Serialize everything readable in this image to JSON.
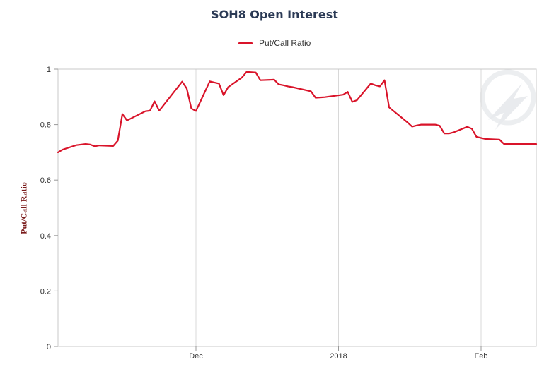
{
  "chart_data": {
    "type": "line",
    "title": "SOH8 Open Interest",
    "ylabel": "Put/Call Ratio",
    "xlabel": "",
    "ylim": [
      0,
      1
    ],
    "yticks": [
      "0",
      "0.2",
      "0.4",
      "0.6",
      "0.8",
      "1"
    ],
    "xticks": [
      "Dec",
      "2018",
      "Feb"
    ],
    "legend": "top-center",
    "grid": "vertical",
    "series": [
      {
        "name": "Put/Call Ratio",
        "color": "#d9142a",
        "x": [
          "2017-11-01",
          "2017-11-02",
          "2017-11-05",
          "2017-11-07",
          "2017-11-08",
          "2017-11-09",
          "2017-11-10",
          "2017-11-13",
          "2017-11-14",
          "2017-11-15",
          "2017-11-16",
          "2017-11-20",
          "2017-11-21",
          "2017-11-22",
          "2017-11-23",
          "2017-11-27",
          "2017-11-28",
          "2017-11-29",
          "2017-11-30",
          "2017-12-01",
          "2017-12-04",
          "2017-12-05",
          "2017-12-06",
          "2017-12-07",
          "2017-12-08",
          "2017-12-11",
          "2017-12-12",
          "2017-12-14",
          "2017-12-15",
          "2017-12-18",
          "2017-12-19",
          "2017-12-20",
          "2017-12-21",
          "2017-12-22",
          "2017-12-26",
          "2017-12-27",
          "2017-12-28",
          "2017-12-29",
          "2018-01-02",
          "2018-01-03",
          "2018-01-04",
          "2018-01-05",
          "2018-01-08",
          "2018-01-09",
          "2018-01-10",
          "2018-01-11",
          "2018-01-12",
          "2018-01-16",
          "2018-01-17",
          "2018-01-18",
          "2018-01-19",
          "2018-01-22",
          "2018-01-23",
          "2018-01-24",
          "2018-01-25",
          "2018-01-26",
          "2018-01-29",
          "2018-01-30",
          "2018-01-31",
          "2018-02-01",
          "2018-02-02",
          "2018-02-05",
          "2018-02-06",
          "2018-02-07",
          "2018-02-08",
          "2018-02-09",
          "2018-02-12",
          "2018-02-13"
        ],
        "values": [
          0.7,
          0.71,
          0.726,
          0.73,
          0.728,
          0.722,
          0.725,
          0.723,
          0.742,
          0.838,
          0.815,
          0.848,
          0.85,
          0.884,
          0.85,
          0.934,
          0.955,
          0.93,
          0.858,
          0.849,
          0.956,
          0.952,
          0.948,
          0.906,
          0.935,
          0.97,
          0.99,
          0.988,
          0.96,
          0.962,
          0.945,
          0.942,
          0.938,
          0.935,
          0.92,
          0.897,
          0.898,
          0.899,
          0.908,
          0.918,
          0.882,
          0.888,
          0.948,
          0.942,
          0.938,
          0.96,
          0.862,
          0.808,
          0.793,
          0.797,
          0.8,
          0.8,
          0.796,
          0.768,
          0.768,
          0.772,
          0.792,
          0.785,
          0.756,
          0.752,
          0.748,
          0.746,
          0.73,
          0.73,
          0.73,
          0.73,
          0.73,
          0.73
        ]
      }
    ]
  }
}
